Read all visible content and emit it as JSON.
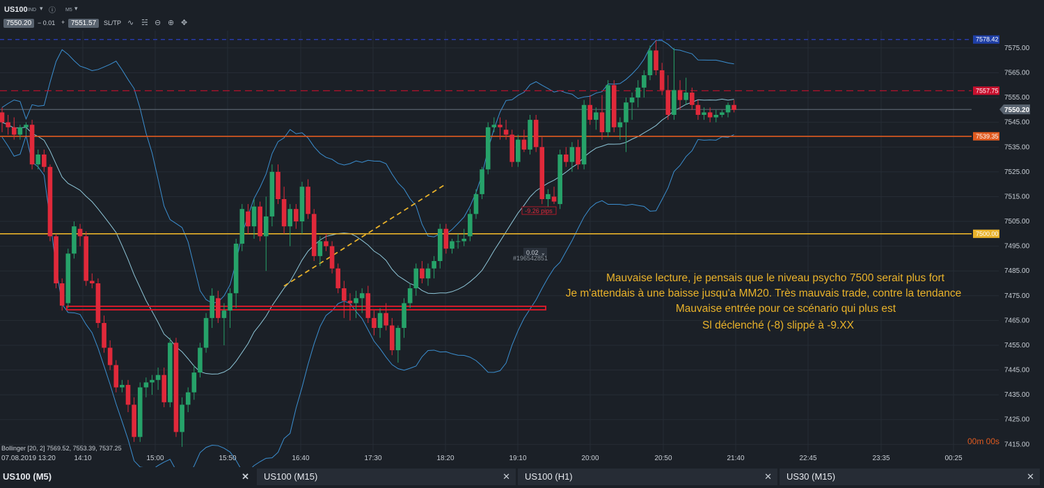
{
  "toolbar": {
    "symbol": "US100",
    "symbol_tag": "IND",
    "timeframe": "M5",
    "bid": "7550.20",
    "spread": "− 0.01",
    "plus": "+",
    "ask": "7551.57",
    "sltp": "SL/TP"
  },
  "icons": [
    "chevron-down-icon",
    "info-icon",
    "line-chart-icon",
    "candles-icon",
    "zoom-out-icon",
    "zoom-in-icon",
    "crosshair-icon",
    "close-icon"
  ],
  "colors": {
    "bull": "#26a269",
    "bear": "#e0293a",
    "background": "#1b2027",
    "grid": "#262c35",
    "bollinger": "#3b8fd1",
    "ma": "#8ec6d8",
    "support": "#e9b22a",
    "resistance": "#e05a1f",
    "level_red": "#c8102e"
  },
  "chart_data": {
    "type": "candlestick",
    "y_range": [
      7412,
      7582
    ],
    "y_ticks": [
      7575,
      7565,
      7555,
      7545,
      7535,
      7525,
      7515,
      7505,
      7495,
      7485,
      7475,
      7465,
      7455,
      7445,
      7435,
      7425,
      7415
    ],
    "y_tick_labels": [
      "7575.00",
      "7565.00",
      "7555.00",
      "7545.00",
      "7535.00",
      "7525.00",
      "7515.00",
      "7505.00",
      "7495.00",
      "7485.00",
      "7475.00",
      "7465.00",
      "7455.00",
      "7445.00",
      "7435.00",
      "7425.00",
      "7415.00"
    ],
    "x_tick_labels": [
      "07.08.2019 13:20",
      "14:10",
      "15:00",
      "15:50",
      "16:40",
      "17:30",
      "18:20",
      "19:10",
      "20:00",
      "20:50",
      "21:40",
      "22:45",
      "23:35",
      "00:25"
    ],
    "price_labels": [
      {
        "text": "7578.42",
        "value": 7578.42,
        "color": "#1f3fa6",
        "line": "dashed-blue"
      },
      {
        "text": "7557.75",
        "value": 7557.75,
        "color": "#c8102e",
        "line": "dashed-red"
      },
      {
        "text": "7550.20",
        "value": 7550.2,
        "color": "#5a6470",
        "line": "current"
      },
      {
        "text": "7539.35",
        "value": 7539.35,
        "color": "#e05a1f",
        "line": "solid-orange"
      },
      {
        "text": "7500.00",
        "value": 7500.0,
        "color": "#e9b22a",
        "line": "solid-yellow"
      }
    ],
    "candles": [
      [
        7549,
        7551,
        7541,
        7545
      ],
      [
        7545,
        7548,
        7540,
        7543
      ],
      [
        7543,
        7547,
        7538,
        7540
      ],
      [
        7540,
        7544,
        7538,
        7543
      ],
      [
        7543,
        7545,
        7540,
        7544
      ],
      [
        7544,
        7546,
        7526,
        7528
      ],
      [
        7528,
        7534,
        7526,
        7532
      ],
      [
        7532,
        7534,
        7525,
        7527
      ],
      [
        7527,
        7528,
        7497,
        7499
      ],
      [
        7499,
        7500,
        7478,
        7480
      ],
      [
        7480,
        7482,
        7469,
        7471
      ],
      [
        7472,
        7494,
        7470,
        7492
      ],
      [
        7492,
        7505,
        7490,
        7503
      ],
      [
        7502,
        7504,
        7495,
        7499
      ],
      [
        7499,
        7501,
        7479,
        7481
      ],
      [
        7481,
        7484,
        7478,
        7480
      ],
      [
        7480,
        7482,
        7462,
        7464
      ],
      [
        7464,
        7467,
        7452,
        7454
      ],
      [
        7454,
        7457,
        7445,
        7447
      ],
      [
        7447,
        7449,
        7436,
        7438
      ],
      [
        7438,
        7441,
        7436,
        7439
      ],
      [
        7439,
        7441,
        7428,
        7431
      ],
      [
        7431,
        7434,
        7416,
        7418
      ],
      [
        7418,
        7440,
        7416,
        7438
      ],
      [
        7438,
        7442,
        7434,
        7440
      ],
      [
        7440,
        7443,
        7435,
        7441
      ],
      [
        7441,
        7446,
        7437,
        7443
      ],
      [
        7443,
        7446,
        7430,
        7432
      ],
      [
        7432,
        7458,
        7430,
        7456
      ],
      [
        7456,
        7458,
        7418,
        7420
      ],
      [
        7420,
        7434,
        7414,
        7431
      ],
      [
        7431,
        7438,
        7428,
        7436
      ],
      [
        7436,
        7447,
        7433,
        7444
      ],
      [
        7444,
        7456,
        7442,
        7454
      ],
      [
        7454,
        7468,
        7452,
        7466
      ],
      [
        7466,
        7478,
        7462,
        7475
      ],
      [
        7474,
        7477,
        7464,
        7466
      ],
      [
        7466,
        7472,
        7455,
        7469
      ],
      [
        7469,
        7478,
        7462,
        7476
      ],
      [
        7476,
        7498,
        7470,
        7496
      ],
      [
        7496,
        7512,
        7493,
        7510
      ],
      [
        7509,
        7512,
        7500,
        7503
      ],
      [
        7503,
        7514,
        7498,
        7511
      ],
      [
        7511,
        7513,
        7497,
        7499
      ],
      [
        7499,
        7515,
        7485,
        7507
      ],
      [
        7507,
        7528,
        7503,
        7525
      ],
      [
        7525,
        7528,
        7512,
        7514
      ],
      [
        7514,
        7519,
        7500,
        7503
      ],
      [
        7503,
        7512,
        7495,
        7510
      ],
      [
        7510,
        7512,
        7502,
        7505
      ],
      [
        7505,
        7521,
        7500,
        7519
      ],
      [
        7519,
        7522,
        7506,
        7508
      ],
      [
        7508,
        7510,
        7489,
        7491
      ],
      [
        7491,
        7499,
        7487,
        7497
      ],
      [
        7497,
        7500,
        7493,
        7495
      ],
      [
        7495,
        7497,
        7484,
        7486
      ],
      [
        7486,
        7488,
        7476,
        7478
      ],
      [
        7478,
        7481,
        7466,
        7473
      ],
      [
        7473,
        7476,
        7465,
        7472
      ],
      [
        7472,
        7477,
        7466,
        7474
      ],
      [
        7474,
        7478,
        7468,
        7476
      ],
      [
        7476,
        7479,
        7464,
        7466
      ],
      [
        7466,
        7469,
        7459,
        7462
      ],
      [
        7462,
        7470,
        7458,
        7468
      ],
      [
        7468,
        7472,
        7461,
        7463
      ],
      [
        7463,
        7466,
        7451,
        7453
      ],
      [
        7453,
        7463,
        7448,
        7462
      ],
      [
        7462,
        7474,
        7458,
        7472
      ],
      [
        7472,
        7480,
        7470,
        7478
      ],
      [
        7478,
        7488,
        7475,
        7486
      ],
      [
        7486,
        7489,
        7480,
        7482
      ],
      [
        7482,
        7488,
        7479,
        7486
      ],
      [
        7486,
        7491,
        7482,
        7489
      ],
      [
        7489,
        7504,
        7486,
        7502
      ],
      [
        7502,
        7504,
        7492,
        7494
      ],
      [
        7494,
        7498,
        7492,
        7497
      ],
      [
        7497,
        7500,
        7494,
        7497
      ],
      [
        7497,
        7502,
        7495,
        7498
      ],
      [
        7499,
        7510,
        7497,
        7508
      ],
      [
        7508,
        7518,
        7506,
        7516
      ],
      [
        7516,
        7527,
        7514,
        7526
      ],
      [
        7526,
        7545,
        7524,
        7543
      ],
      [
        7543,
        7547,
        7541,
        7544
      ],
      [
        7544,
        7547,
        7538,
        7543
      ],
      [
        7542,
        7546,
        7538,
        7540
      ],
      [
        7540,
        7542,
        7527,
        7529
      ],
      [
        7529,
        7540,
        7527,
        7538
      ],
      [
        7538,
        7542,
        7533,
        7534
      ],
      [
        7534,
        7548,
        7532,
        7546
      ],
      [
        7546,
        7548,
        7533,
        7535
      ],
      [
        7535,
        7539,
        7512,
        7514
      ],
      [
        7514,
        7518,
        7510,
        7516
      ],
      [
        7515,
        7519,
        7512,
        7513
      ],
      [
        7512,
        7534,
        7510,
        7532
      ],
      [
        7532,
        7535,
        7527,
        7529
      ],
      [
        7529,
        7537,
        7525,
        7535
      ],
      [
        7535,
        7538,
        7526,
        7528
      ],
      [
        7528,
        7554,
        7526,
        7552
      ],
      [
        7552,
        7556,
        7544,
        7546
      ],
      [
        7546,
        7551,
        7542,
        7549
      ],
      [
        7549,
        7556,
        7538,
        7541
      ],
      [
        7541,
        7562,
        7539,
        7560
      ],
      [
        7560,
        7562,
        7541,
        7543
      ],
      [
        7543,
        7547,
        7538,
        7545
      ],
      [
        7545,
        7555,
        7533,
        7553
      ],
      [
        7553,
        7557,
        7546,
        7555
      ],
      [
        7555,
        7562,
        7551,
        7559
      ],
      [
        7559,
        7566,
        7555,
        7564
      ],
      [
        7564,
        7576,
        7562,
        7574
      ],
      [
        7574,
        7578,
        7564,
        7566
      ],
      [
        7566,
        7569,
        7556,
        7558
      ],
      [
        7558,
        7564,
        7546,
        7548
      ],
      [
        7548,
        7575,
        7546,
        7558
      ],
      [
        7558,
        7562,
        7550,
        7554
      ],
      [
        7554,
        7563,
        7552,
        7557
      ],
      [
        7557,
        7559,
        7550,
        7552
      ],
      [
        7552,
        7554,
        7546,
        7548
      ],
      [
        7548,
        7551,
        7546,
        7549
      ],
      [
        7549,
        7551,
        7545,
        7547
      ],
      [
        7547,
        7550,
        7545,
        7548
      ],
      [
        7548,
        7550,
        7547,
        7549
      ],
      [
        7549,
        7553,
        7547,
        7552
      ],
      [
        7552,
        7554,
        7549,
        7550
      ]
    ],
    "indicator_label": "Bollinger [20, 2] 7569.52, 7553.39, 7537.25",
    "trade_label": "-9.26 pips",
    "position_size": "0.02",
    "position_id": "#196542851",
    "countdown": "00m 00s"
  },
  "annotation": [
    "Mauvaise lecture, je pensais que le niveau psycho 7500 serait plus fort",
    "Je m'attendais à une baisse jusqu'a MM20. Très mauvais trade, contre la tendance",
    "Mauvaise entrée pour ce scénario qui plus est",
    "Sl déclenché (-8) slippé à -9.XX"
  ],
  "tabs": [
    {
      "label": "US100 (M5)",
      "active": true
    },
    {
      "label": "US100 (M15)",
      "active": false
    },
    {
      "label": "US100 (H1)",
      "active": false
    },
    {
      "label": "US30 (M15)",
      "active": false
    }
  ]
}
